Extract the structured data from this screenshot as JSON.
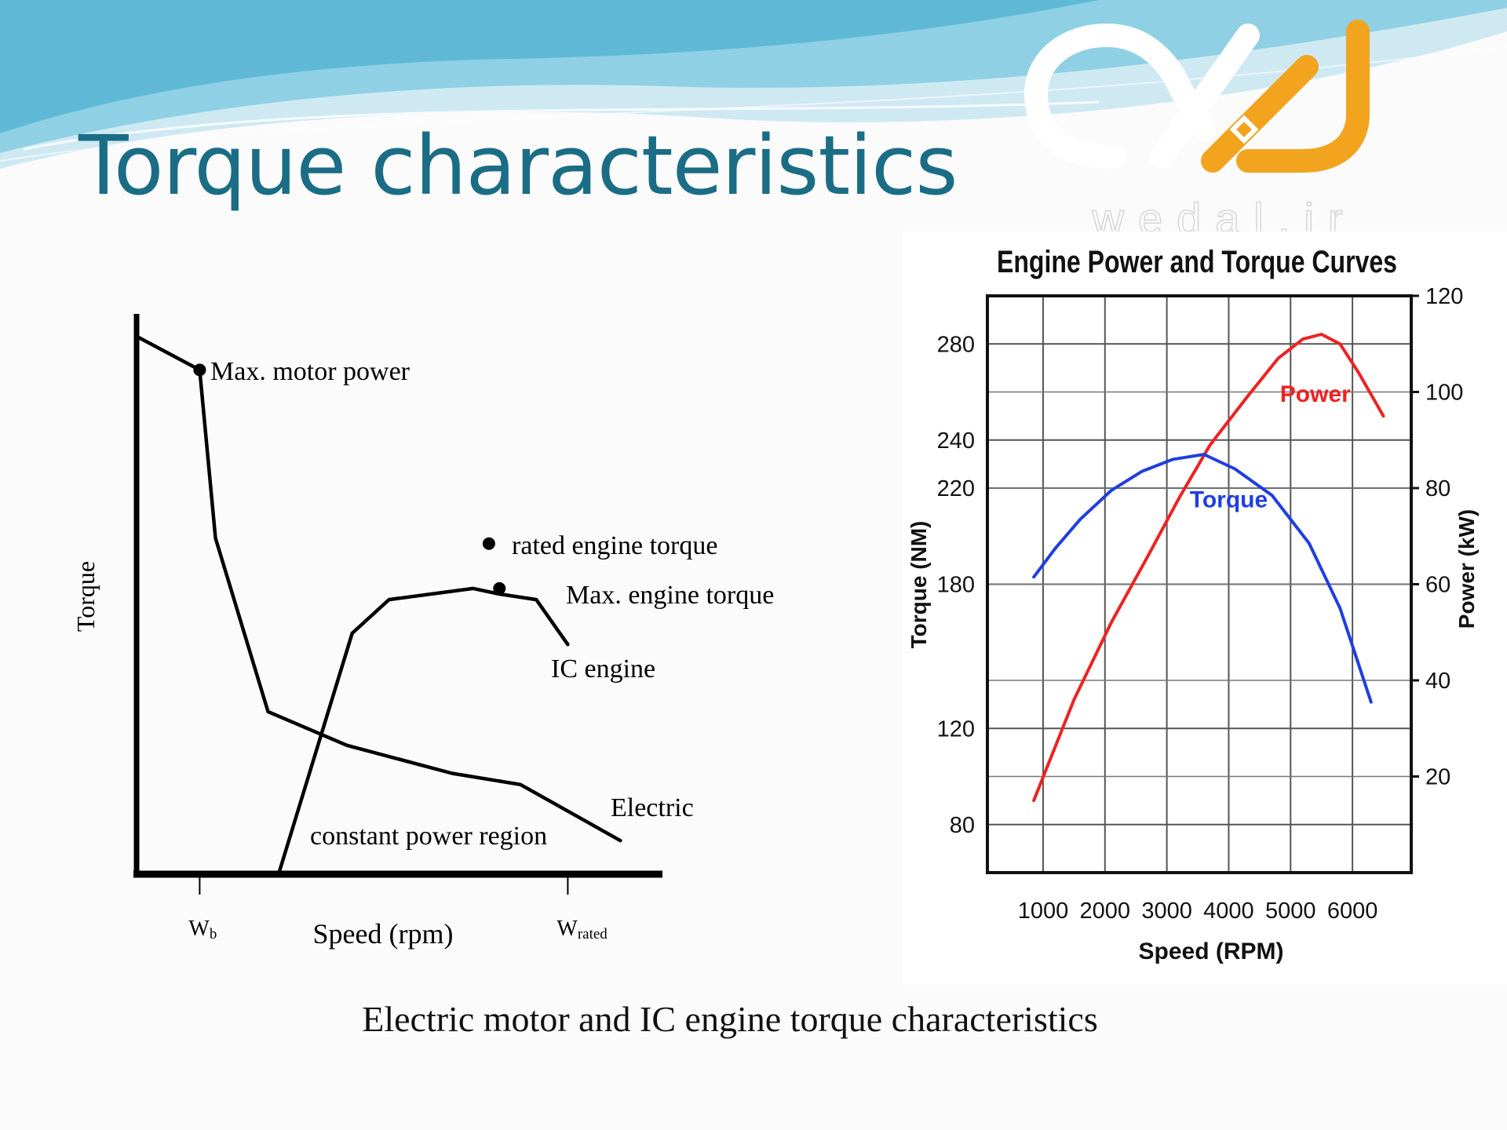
{
  "slide": {
    "title": "Torque characteristics",
    "caption": "Electric motor and IC engine torque characteristics"
  },
  "logo": {
    "text": "wedal.ir",
    "colors": {
      "white": "#ffffff",
      "orange": "#f2a41f"
    }
  },
  "colors": {
    "title": "#1b6d85",
    "banner_light": "#bfe3ef",
    "banner_mid": "#7ec8df",
    "banner_dark": "#4fb0cf"
  },
  "chart_data": [
    {
      "type": "line",
      "title": "",
      "xlabel": "Speed (rpm)",
      "ylabel": "Torque",
      "x_ticks": [
        {
          "label": "Wb",
          "main": "W",
          "sub": "b",
          "x": 0.12
        },
        {
          "label": "Wrated",
          "main": "W",
          "sub": "rated",
          "x": 0.82
        }
      ],
      "xlim": [
        0,
        1
      ],
      "ylim": [
        0,
        1
      ],
      "series": [
        {
          "name": "Electric",
          "x": [
            0.0,
            0.12,
            0.15,
            0.25,
            0.4,
            0.6,
            0.73,
            0.92
          ],
          "y": [
            0.96,
            0.9,
            0.6,
            0.29,
            0.23,
            0.18,
            0.16,
            0.06
          ]
        },
        {
          "name": "IC engine",
          "x": [
            0.27,
            0.41,
            0.48,
            0.64,
            0.69,
            0.76,
            0.82
          ],
          "y": [
            0.0,
            0.43,
            0.49,
            0.51,
            0.5,
            0.49,
            0.41
          ]
        }
      ],
      "markers": [
        {
          "name": "max-motor-power",
          "x": 0.12,
          "y": 0.9
        },
        {
          "name": "rated-engine-torque",
          "x": 0.67,
          "y": 0.59
        },
        {
          "name": "max-engine-torque",
          "x": 0.69,
          "y": 0.51
        }
      ],
      "annotations": {
        "max_motor_power": "Max. motor power",
        "rated_engine_torque": "rated engine torque",
        "max_engine_torque": "Max. engine torque",
        "ic_engine": "IC engine",
        "electric": "Electric",
        "constant_power_region": "constant power region"
      }
    },
    {
      "type": "line",
      "title": "Engine Power and Torque Curves",
      "xlabel": "Speed (RPM)",
      "ylabel_left": "Torque (NM)",
      "ylabel_right": "Power (kW)",
      "xlim": [
        100,
        6950
      ],
      "x_ticks": [
        1000,
        2000,
        3000,
        4000,
        5000,
        6000
      ],
      "ylim_left": [
        60,
        300
      ],
      "y_ticks_left": [
        80,
        120,
        180,
        220,
        240,
        280
      ],
      "ylim_right": [
        0,
        120
      ],
      "y_ticks_right": [
        20,
        40,
        60,
        80,
        100,
        120
      ],
      "grid": true,
      "series": [
        {
          "name": "Power",
          "axis": "right",
          "color": "#ee2222",
          "x": [
            850,
            1500,
            2100,
            2700,
            3200,
            3700,
            4300,
            4800,
            5200,
            5500,
            5800,
            6100,
            6500
          ],
          "y": [
            15,
            36,
            52,
            66,
            78,
            89,
            99,
            107,
            111,
            112,
            110,
            104,
            95
          ]
        },
        {
          "name": "Torque",
          "axis": "left",
          "color": "#1f3fe0",
          "x": [
            850,
            1200,
            1600,
            2100,
            2600,
            3100,
            3600,
            4100,
            4700,
            5300,
            5800,
            6300
          ],
          "y": [
            183,
            195,
            207,
            219,
            227,
            232,
            234,
            228,
            217,
            197,
            170,
            131
          ]
        }
      ]
    }
  ]
}
